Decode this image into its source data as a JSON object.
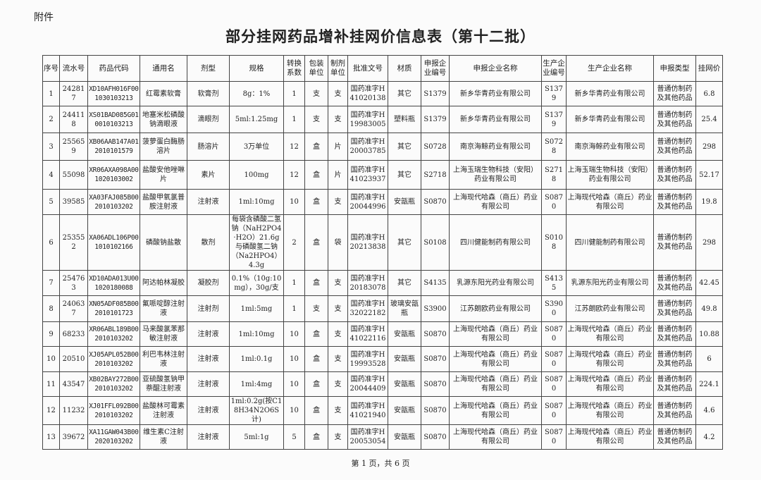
{
  "attachment_label": "附件",
  "title": "部分挂网药品增补挂网价信息表（第十二批）",
  "table": {
    "headers": [
      "序号",
      "流水号",
      "药品代码",
      "通用名",
      "剂型",
      "规格",
      "转换系数",
      "包装单位",
      "制剂单位",
      "批准文号",
      "材质",
      "申报企业编号",
      "申报企业名称",
      "生产企业编号",
      "生产企业名称",
      "申报类型",
      "挂网价"
    ],
    "rows": [
      [
        "1",
        "242817",
        "XD10AFH016F001030103213",
        "红霉素软膏",
        "软膏剂",
        "8g：1%",
        "1",
        "支",
        "支",
        "国药准字H41020138",
        "其它",
        "S1379",
        "新乡华青药业有限公司",
        "S1379",
        "新乡华青药业有限公司",
        "普通仿制药及其他药品",
        "6.8"
      ],
      [
        "2",
        "244118",
        "XS01BAD085G010010103213",
        "地塞米松磷酸钠滴眼液",
        "滴眼剂",
        "5ml:1.25mg",
        "1",
        "支",
        "支",
        "国药准字H19983005",
        "塑料瓶",
        "S1379",
        "新乡华青药业有限公司",
        "S1379",
        "新乡华青药业有限公司",
        "普通仿制药及其他药品",
        "25.4"
      ],
      [
        "3",
        "255659",
        "XB06AAB147A012010101579",
        "菠萝蛋白酶肠溶片",
        "肠溶片",
        "3万单位",
        "12",
        "盒",
        "片",
        "国药准字H20003785",
        "其它",
        "S0728",
        "南京海鲸药业有限公司",
        "S0728",
        "南京海鲸药业有限公司",
        "普通仿制药及其他药品",
        "298"
      ],
      [
        "4",
        "55098",
        "XR06AXA098A001020103002",
        "盐酸安他唑啉片",
        "素片",
        "100mg",
        "12",
        "盒",
        "片",
        "国药准字H41023937",
        "其它",
        "S2718",
        "上海玉瑞生物科技（安阳）药业有限公司",
        "S2718",
        "上海玉瑞生物科技（安阳）药业有限公司",
        "普通仿制药及其他药品",
        "52.17"
      ],
      [
        "5",
        "39585",
        "XA03FAJ085B002010103202",
        "盐酸甲氧氯普胺注射液",
        "注射液",
        "1ml:10mg",
        "10",
        "盒",
        "支",
        "国药准字H20044996",
        "安瓿瓶",
        "S0870",
        "上海现代哈森（商丘）药业有限公司",
        "S0870",
        "上海现代哈森（商丘）药业有限公司",
        "普通仿制药及其他药品",
        "19.8"
      ],
      [
        "6",
        "253552",
        "XA06ADL106P001010102166",
        "磷酸钠盐散",
        "散剂",
        "每袋含磷酸二氢钠（NaH2PO4·H2O）21.6g与磷酸氢二钠（Na2HPO4）4.3g",
        "2",
        "盒",
        "袋",
        "国药准字H20213838",
        "其它",
        "S0108",
        "四川健能制药有限公司",
        "S0108",
        "四川健能制药有限公司",
        "普通仿制药及其他药品",
        "298"
      ],
      [
        "7",
        "254763",
        "XD10ADA013U001020180088",
        "阿达帕林凝胶",
        "凝胶剂",
        "0.1%（10g:10mg），30g/支",
        "1",
        "盒",
        "支",
        "国药准字H20183078",
        "其它",
        "S4135",
        "乳源东阳光药业有限公司",
        "S4135",
        "乳源东阳光药业有限公司",
        "普通仿制药及其他药品",
        "42.45"
      ],
      [
        "8",
        "240637",
        "XN05ADF085B002010101723",
        "氟哌啶醇注射液",
        "注射剂",
        "1ml:5mg",
        "1",
        "支",
        "支",
        "国药准字H32022182",
        "玻璃安瓿瓶",
        "S3900",
        "江苏朗欧药业有限公司",
        "S3900",
        "江苏朗欧药业有限公司",
        "普通仿制药及其他药品",
        "49.8"
      ],
      [
        "9",
        "68233",
        "XR06ABL189B002010103202",
        "马来酸氯苯那敏注射液",
        "注射液",
        "1ml:10mg",
        "10",
        "盒",
        "支",
        "国药准字H41022116",
        "安瓿瓶",
        "S0870",
        "上海现代哈森（商丘）药业有限公司",
        "S0870",
        "上海现代哈森（商丘）药业有限公司",
        "普通仿制药及其他药品",
        "10.88"
      ],
      [
        "10",
        "20510",
        "XJ05APL052B002010103202",
        "利巴韦林注射液",
        "注射液",
        "1ml:0.1g",
        "10",
        "盒",
        "支",
        "国药准字H19993528",
        "安瓿瓶",
        "S0870",
        "上海现代哈森（商丘）药业有限公司",
        "S0870",
        "上海现代哈森（商丘）药业有限公司",
        "普通仿制药及其他药品",
        "6"
      ],
      [
        "11",
        "43547",
        "XB02BAY272B002010103202",
        "亚硫酸氢钠甲萘醌注射液",
        "注射液",
        "1ml:4mg",
        "10",
        "盒",
        "支",
        "国药准字H20044409",
        "安瓿瓶",
        "S0870",
        "上海现代哈森（商丘）药业有限公司",
        "S0870",
        "上海现代哈森（商丘）药业有限公司",
        "普通仿制药及其他药品",
        "224.1"
      ],
      [
        "12",
        "11232",
        "XJ01FFL092B002010103202",
        "盐酸林可霉素注射液",
        "注射液",
        "1ml:0.2g(按C18H34N2O6S计)",
        "10",
        "盒",
        "支",
        "国药准字H41021940",
        "安瓿瓶",
        "S0870",
        "上海现代哈森（商丘）药业有限公司",
        "S0870",
        "上海现代哈森（商丘）药业有限公司",
        "普通仿制药及其他药品",
        "4.6"
      ],
      [
        "13",
        "39672",
        "XA11GAW043B002020103202",
        "维生素C注射液",
        "注射液",
        "5ml:1g",
        "5",
        "盒",
        "支",
        "国药准字H20053054",
        "安瓿瓶",
        "S0870",
        "上海现代哈森（商丘）药业有限公司",
        "S0870",
        "上海现代哈森（商丘）药业有限公司",
        "普通仿制药及其他药品",
        "4.2"
      ]
    ]
  },
  "footer": "第 1 页，共 6 页"
}
